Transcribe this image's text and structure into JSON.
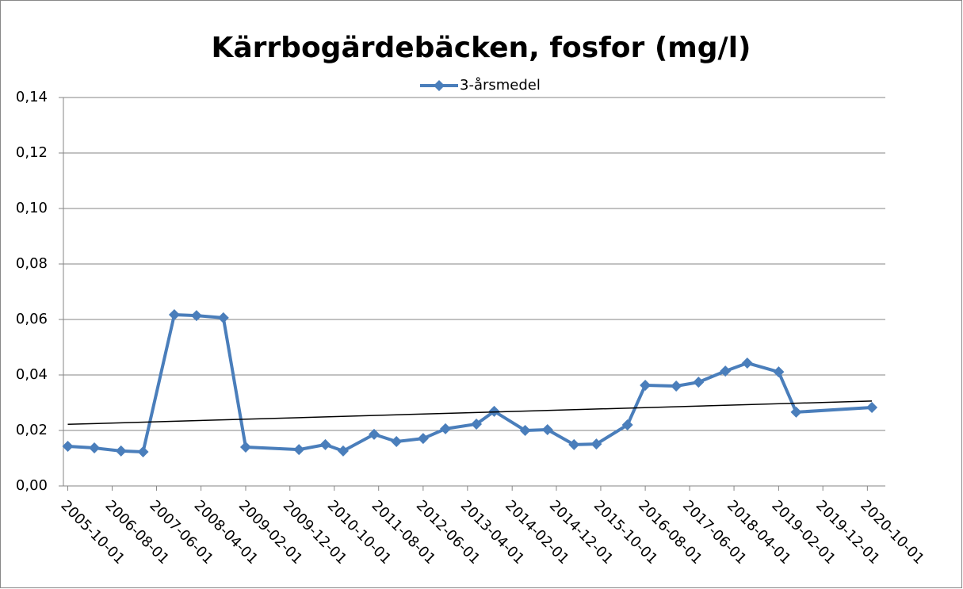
{
  "chart_data": {
    "type": "line",
    "title": "Kärrbogärdebäcken, fosfor (mg/l)",
    "x": [
      "2005-10-01",
      "2006-04-01",
      "2006-10-01",
      "2007-03-01",
      "2007-10-01",
      "2008-03-01",
      "2008-09-01",
      "2009-02-01",
      "2010-02-01",
      "2010-08-01",
      "2010-12-01",
      "2011-07-01",
      "2011-12-01",
      "2012-06-01",
      "2012-11-01",
      "2013-06-01",
      "2013-10-01",
      "2014-05-01",
      "2014-10-01",
      "2015-04-01",
      "2015-09-01",
      "2016-04-01",
      "2016-08-01",
      "2017-03-01",
      "2017-08-01",
      "2018-02-01",
      "2018-07-01",
      "2019-02-01",
      "2019-06-01",
      "2020-11-01"
    ],
    "series": [
      {
        "name": "3-årsmedel",
        "color": "#4a7ebb",
        "values": [
          0.0143,
          0.0137,
          0.0126,
          0.0123,
          0.0617,
          0.0614,
          0.0606,
          0.014,
          0.0131,
          0.0149,
          0.0126,
          0.0186,
          0.016,
          0.0171,
          0.0206,
          0.0223,
          0.0269,
          0.02,
          0.0203,
          0.0149,
          0.0151,
          0.022,
          0.0363,
          0.036,
          0.0374,
          0.0414,
          0.0443,
          0.0411,
          0.0266,
          0.0283
        ]
      }
    ],
    "trendline": {
      "x": [
        "2005-10-01",
        "2020-11-01"
      ],
      "values": [
        0.0222,
        0.0306
      ],
      "color": "#000000"
    },
    "xlim": [
      "2005-09-01",
      "2021-02-01"
    ],
    "xticks": [
      "2005-10-01",
      "2006-08-01",
      "2007-06-01",
      "2008-04-01",
      "2009-02-01",
      "2009-12-01",
      "2010-10-01",
      "2011-08-01",
      "2012-06-01",
      "2013-04-01",
      "2014-02-01",
      "2014-12-01",
      "2015-10-01",
      "2016-08-01",
      "2017-06-01",
      "2018-04-01",
      "2019-02-01",
      "2019-12-01",
      "2020-10-01"
    ],
    "ylim": [
      0,
      0.14
    ],
    "yticks": [
      {
        "value": 0,
        "label": "0,00"
      },
      {
        "value": 0.02,
        "label": "0,02"
      },
      {
        "value": 0.04,
        "label": "0,04"
      },
      {
        "value": 0.06,
        "label": "0,06"
      },
      {
        "value": 0.08,
        "label": "0,08"
      },
      {
        "value": 0.1,
        "label": "0,10"
      },
      {
        "value": 0.12,
        "label": "0,12"
      },
      {
        "value": 0.14,
        "label": "0,14"
      }
    ],
    "grid": true,
    "legend": "top"
  }
}
